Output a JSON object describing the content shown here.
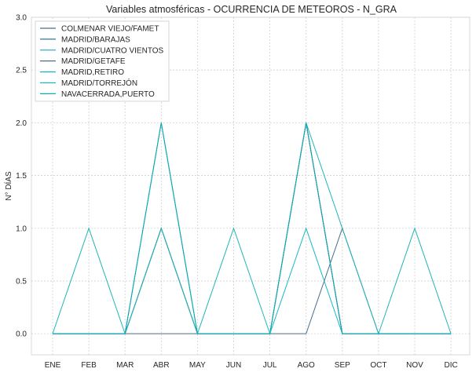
{
  "chart_data": {
    "type": "line",
    "title": "Variables atmosféricas - OCURRENCIA DE METEOROS - N_GRA",
    "xlabel": "",
    "ylabel": "N° DÍAS",
    "categories": [
      "ENE",
      "FEB",
      "MAR",
      "ABR",
      "MAY",
      "JUN",
      "JUL",
      "AGO",
      "SEP",
      "OCT",
      "NOV",
      "DIC"
    ],
    "ylim": [
      -0.2,
      3.0
    ],
    "yticks": [
      0.0,
      0.5,
      1.0,
      1.5,
      2.0,
      2.5,
      3.0
    ],
    "ytick_labels": [
      "0.0",
      "0.5",
      "1.0",
      "1.5",
      "2.0",
      "2.5",
      "3.0"
    ],
    "grid": true,
    "legend_position": "top-left",
    "series": [
      {
        "name": "COLMENAR VIEJO/FAMET",
        "color": "#4a6d8c",
        "values": [
          0,
          0,
          0,
          0,
          0,
          0,
          0,
          0,
          1,
          0,
          0,
          0
        ]
      },
      {
        "name": "MADRID/BARAJAS",
        "color": "#2d7f9e",
        "values": [
          0,
          0,
          0,
          1,
          0,
          0,
          0,
          2,
          0,
          0,
          0,
          0
        ]
      },
      {
        "name": "MADRID/CUATRO VIENTOS",
        "color": "#1aa7c4",
        "values": [
          0,
          0,
          0,
          2,
          0,
          0,
          0,
          2,
          0,
          0,
          0,
          0
        ]
      },
      {
        "name": "MADRID/GETAFE",
        "color": "#3b5f7f",
        "values": [
          0,
          0,
          0,
          1,
          0,
          0,
          0,
          2,
          0,
          0,
          0,
          0
        ]
      },
      {
        "name": "MADRID,RETIRO",
        "color": "#14b8c8",
        "values": [
          0,
          0,
          0,
          2,
          0,
          0,
          0,
          1,
          0,
          0,
          0,
          0
        ]
      },
      {
        "name": "MADRID/TORREJÓN",
        "color": "#21b5b8",
        "values": [
          0,
          1,
          0,
          1,
          0,
          1,
          0,
          2,
          1,
          0,
          1,
          0
        ]
      },
      {
        "name": "NAVACERRADA,PUERTO",
        "color": "#12a9b0",
        "values": [
          0,
          0,
          0,
          2,
          0,
          0,
          0,
          2,
          0,
          0,
          0,
          0
        ]
      }
    ]
  }
}
